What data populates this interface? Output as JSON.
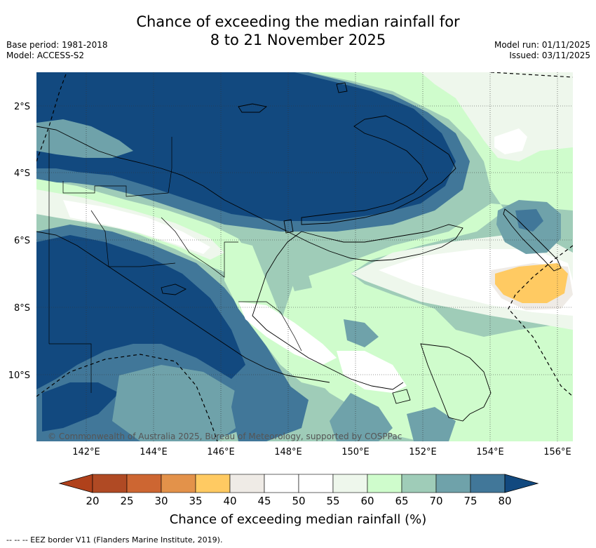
{
  "title_line1": "Chance of exceeding the median rainfall for",
  "title_line2": "8 to 21 November 2025",
  "meta_left": {
    "base_period": "Base period: 1981-2018",
    "model": "Model: ACCESS-S2"
  },
  "meta_right": {
    "model_run": "Model run: 01/11/2025",
    "issued": "Issued: 03/11/2025"
  },
  "map": {
    "lat_labels": [
      "2°S",
      "4°S",
      "6°S",
      "8°S",
      "10°S"
    ],
    "lon_labels": [
      "142°E",
      "144°E",
      "146°E",
      "148°E",
      "150°E",
      "152°E",
      "154°E",
      "156°E"
    ],
    "copyright": "© Commonwealth of Australia 2025, Bureau of Meteorology, supported by COSPPac",
    "colors": {
      "c80": "#12497f",
      "c75": "#417799",
      "c70": "#6fa2aa",
      "c65": "#9fccb8",
      "c60": "#cffccc",
      "c55": "#eef7ec",
      "c50": "#ffffff",
      "c40": "#efebe6",
      "c35": "#ffca62"
    }
  },
  "colorbar": {
    "ticks": [
      "20",
      "25",
      "30",
      "35",
      "40",
      "45",
      "50",
      "55",
      "60",
      "65",
      "70",
      "75",
      "80"
    ],
    "colors": [
      "#b0411b",
      "#b04a24",
      "#cd6632",
      "#e3924a",
      "#ffca62",
      "#efebe6",
      "#ffffff",
      "#ffffff",
      "#eef7ec",
      "#cffccc",
      "#9fccb8",
      "#6fa2aa",
      "#417799",
      "#12497f"
    ],
    "label": "Chance of exceeding median rainfall (%)"
  },
  "footer": "--  --  -- EEZ border V11 (Flanders Marine Institute, 2019)."
}
